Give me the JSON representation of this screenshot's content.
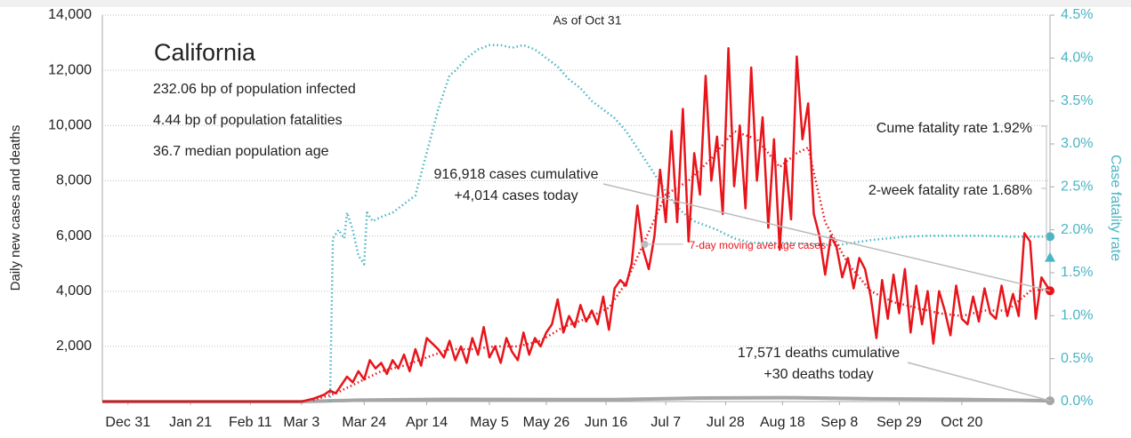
{
  "chart_data": {
    "type": "line",
    "title": "California",
    "subtitle": "As of Oct 31",
    "notes": [
      "232.06 bp of population infected",
      "4.44 bp of population fatalities",
      "36.7 median population age"
    ],
    "y_label": "Daily new cases and deaths",
    "y2_label": "Case fatality rate",
    "xlim": [
      0,
      333
    ],
    "xticks": [
      {
        "value": 9,
        "label": "Dec 31"
      },
      {
        "value": 31,
        "label": "Jan 21"
      },
      {
        "value": 52,
        "label": "Feb 11"
      },
      {
        "value": 70,
        "label": "Mar 3"
      },
      {
        "value": 92,
        "label": "Mar 24"
      },
      {
        "value": 114,
        "label": "Apr 14"
      },
      {
        "value": 136,
        "label": "May 5"
      },
      {
        "value": 156,
        "label": "May 26"
      },
      {
        "value": 177,
        "label": "Jun 16"
      },
      {
        "value": 198,
        "label": "Jul 7"
      },
      {
        "value": 219,
        "label": "Jul 28"
      },
      {
        "value": 239,
        "label": "Aug 18"
      },
      {
        "value": 259,
        "label": "Sep 8"
      },
      {
        "value": 280,
        "label": "Sep 29"
      },
      {
        "value": 302,
        "label": "Oct 20"
      }
    ],
    "ylim": [
      0,
      14000
    ],
    "yticks": [
      {
        "value": 2000,
        "label": "2,000"
      },
      {
        "value": 4000,
        "label": "4,000"
      },
      {
        "value": 6000,
        "label": "6,000"
      },
      {
        "value": 8000,
        "label": "8,000"
      },
      {
        "value": 10000,
        "label": "10,000"
      },
      {
        "value": 12000,
        "label": "12,000"
      },
      {
        "value": 14000,
        "label": "14,000"
      }
    ],
    "y2lim": [
      0,
      4.5
    ],
    "y2ticks": [
      {
        "value": 0,
        "label": "0.0%"
      },
      {
        "value": 0.5,
        "label": "0.5%"
      },
      {
        "value": 1,
        "label": "1.0%"
      },
      {
        "value": 1.5,
        "label": "1.5%"
      },
      {
        "value": 2,
        "label": "2.0%"
      },
      {
        "value": 2.5,
        "label": "2.5%"
      },
      {
        "value": 3,
        "label": "3.0%"
      },
      {
        "value": 3.5,
        "label": "3.5%"
      },
      {
        "value": 4,
        "label": "4.0%"
      },
      {
        "value": 4.5,
        "label": "4.5%"
      }
    ],
    "grid": true,
    "series": [
      {
        "name": "Cases",
        "color": "#e8141a",
        "style": "solid",
        "x": [
          0,
          70,
          74,
          78,
          80,
          82,
          84,
          86,
          88,
          90,
          92,
          94,
          96,
          98,
          100,
          102,
          104,
          106,
          108,
          110,
          112,
          114,
          116,
          118,
          120,
          122,
          124,
          126,
          128,
          130,
          132,
          134,
          136,
          138,
          140,
          142,
          144,
          146,
          148,
          150,
          152,
          154,
          156,
          158,
          160,
          162,
          164,
          166,
          168,
          170,
          172,
          174,
          176,
          178,
          180,
          182,
          184,
          186,
          188,
          190,
          192,
          194,
          196,
          198,
          200,
          202,
          204,
          206,
          208,
          210,
          212,
          214,
          216,
          218,
          220,
          222,
          224,
          226,
          228,
          230,
          232,
          234,
          236,
          238,
          240,
          242,
          244,
          246,
          248,
          250,
          252,
          254,
          256,
          258,
          260,
          262,
          264,
          266,
          268,
          270,
          272,
          274,
          276,
          278,
          280,
          282,
          284,
          286,
          288,
          290,
          292,
          294,
          296,
          298,
          300,
          302,
          304,
          306,
          308,
          310,
          312,
          314,
          316,
          318,
          320,
          322,
          324,
          326,
          328,
          330,
          333
        ],
        "values": [
          0,
          0,
          100,
          250,
          400,
          300,
          600,
          900,
          700,
          1100,
          800,
          1500,
          1200,
          1400,
          1000,
          1500,
          1200,
          1700,
          1100,
          1900,
          1300,
          2300,
          2100,
          1900,
          1600,
          2200,
          1500,
          2000,
          1400,
          2300,
          1700,
          2700,
          1600,
          2000,
          1400,
          2300,
          1800,
          1500,
          2500,
          1700,
          2300,
          2000,
          2500,
          2800,
          3700,
          2500,
          3100,
          2700,
          3500,
          2900,
          3300,
          2800,
          3800,
          2600,
          4100,
          4400,
          4200,
          5000,
          7100,
          5500,
          4800,
          6000,
          8400,
          6500,
          9800,
          6500,
          10600,
          5800,
          9000,
          7500,
          11800,
          8000,
          9600,
          6800,
          12800,
          7800,
          10000,
          7000,
          12100,
          8000,
          10300,
          6300,
          9500,
          5500,
          8800,
          6600,
          12500,
          9500,
          10800,
          6800,
          6000,
          4600,
          6000,
          5600,
          4500,
          5200,
          4100,
          5200,
          4800,
          3800,
          2300,
          4400,
          3000,
          4600,
          3200,
          4800,
          2500,
          4200,
          2800,
          4000,
          2100,
          4000,
          3300,
          2400,
          4200,
          3000,
          2800,
          3800,
          2900,
          4100,
          3200,
          3000,
          4200,
          3100,
          3900,
          3100,
          6100,
          5800,
          3000,
          4500,
          4014
        ]
      },
      {
        "name": "7-day moving average cases",
        "color": "#e8141a",
        "style": "dotted",
        "x": [
          74,
          82,
          90,
          98,
          106,
          114,
          122,
          130,
          138,
          146,
          154,
          162,
          170,
          178,
          184,
          190,
          198,
          206,
          214,
          222,
          230,
          238,
          244,
          248,
          254,
          262,
          270,
          278,
          286,
          294,
          302,
          310,
          318,
          326,
          333
        ],
        "values": [
          50,
          300,
          700,
          1100,
          1300,
          1600,
          1900,
          1900,
          2000,
          2000,
          2200,
          2700,
          3000,
          3400,
          4300,
          5700,
          7500,
          8000,
          8800,
          9800,
          9500,
          8500,
          9000,
          9200,
          6500,
          5000,
          4000,
          3600,
          3400,
          3200,
          3100,
          3300,
          3300,
          4000,
          4100
        ]
      },
      {
        "name": "Deaths",
        "color": "#a6a6a6",
        "style": "thick",
        "x": [
          0,
          70,
          90,
          120,
          180,
          210,
          240,
          270,
          300,
          333
        ],
        "values": [
          0,
          0,
          50,
          80,
          70,
          130,
          140,
          100,
          80,
          30
        ]
      },
      {
        "name": "Case fatality rate",
        "color": "#4ab5c4",
        "style": "dotted",
        "axis": "y2",
        "x": [
          80,
          81,
          83,
          85,
          86,
          88,
          90,
          92,
          93,
          95,
          98,
          102,
          106,
          110,
          114,
          118,
          122,
          124,
          128,
          132,
          136,
          140,
          144,
          148,
          152,
          156,
          160,
          164,
          168,
          172,
          176,
          180,
          184,
          188,
          192,
          196,
          200,
          204,
          208,
          212,
          216,
          222,
          228,
          234,
          240,
          246,
          252,
          258,
          264,
          270,
          276,
          282,
          290,
          300,
          310,
          320,
          333
        ],
        "values": [
          0,
          1.9,
          2.0,
          1.9,
          2.2,
          2.0,
          1.7,
          1.6,
          2.2,
          2.1,
          2.15,
          2.2,
          2.3,
          2.4,
          2.9,
          3.4,
          3.8,
          3.85,
          4.0,
          4.1,
          4.15,
          4.15,
          4.12,
          4.15,
          4.1,
          4.0,
          3.9,
          3.75,
          3.65,
          3.5,
          3.4,
          3.3,
          3.15,
          2.95,
          2.75,
          2.55,
          2.35,
          2.2,
          2.1,
          2.05,
          2.0,
          1.9,
          1.85,
          1.85,
          1.85,
          1.84,
          1.83,
          1.82,
          1.85,
          1.88,
          1.9,
          1.92,
          1.93,
          1.93,
          1.93,
          1.92,
          1.92
        ]
      }
    ],
    "two_week_fatality_rate": 1.68,
    "annotations": [
      {
        "lines": [
          "916,918 cases cumulative",
          "+4,014 cases today"
        ]
      },
      {
        "lines": [
          "17,571 deaths cumulative",
          "+30 deaths today"
        ]
      },
      {
        "lines": [
          "Cume fatality rate 1.92%"
        ]
      },
      {
        "lines": [
          "2-week fatality rate 1.68%"
        ]
      }
    ]
  }
}
